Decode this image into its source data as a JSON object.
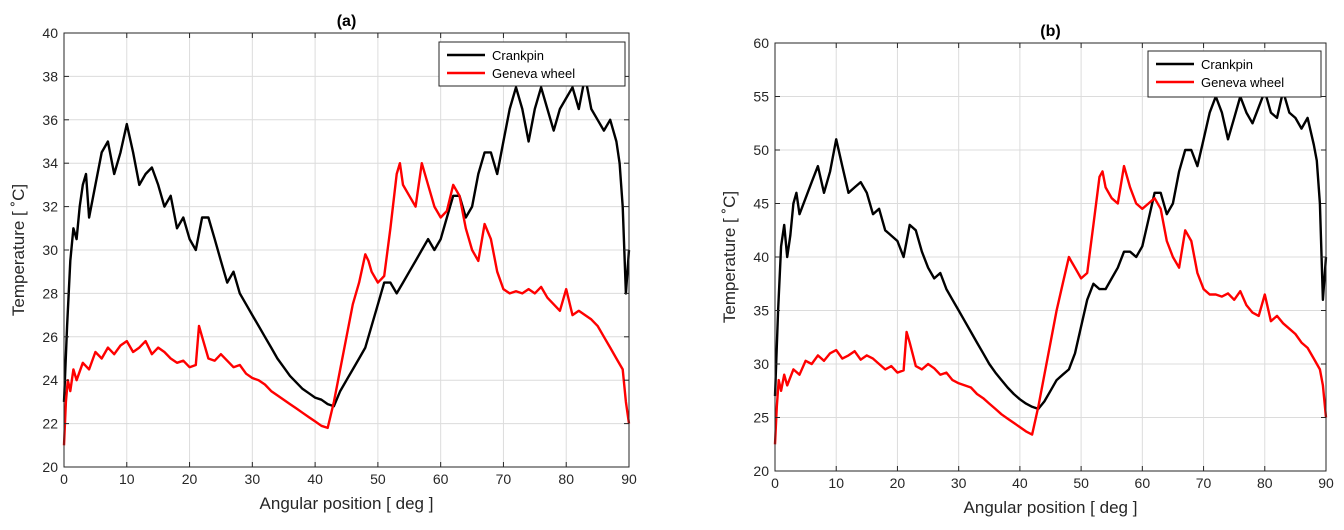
{
  "chart_data": [
    {
      "type": "line",
      "title": "(a)",
      "xlabel": "Angular position [ deg ]",
      "ylabel": "Temperature [ ˚C]",
      "xlim": [
        0,
        90
      ],
      "ylim": [
        20,
        40
      ],
      "xticks": [
        0,
        10,
        20,
        30,
        40,
        50,
        60,
        70,
        80,
        90
      ],
      "yticks": [
        20,
        22,
        24,
        26,
        28,
        30,
        32,
        34,
        36,
        38,
        40
      ],
      "grid": true,
      "legend_position": "top-right",
      "series": [
        {
          "name": "Crankpin",
          "color": "#000000",
          "x": [
            0,
            0.5,
            1,
            1.5,
            2,
            2.5,
            3,
            3.5,
            4,
            5,
            6,
            7,
            8,
            9,
            10,
            11,
            12,
            13,
            14,
            15,
            16,
            17,
            18,
            19,
            20,
            21,
            22,
            23,
            24,
            25,
            26,
            27,
            28,
            29,
            30,
            31,
            32,
            33,
            34,
            35,
            36,
            37,
            38,
            39,
            40,
            41,
            42,
            43,
            44,
            45,
            46,
            47,
            48,
            49,
            50,
            51,
            52,
            53,
            54,
            55,
            56,
            57,
            58,
            59,
            60,
            61,
            62,
            63,
            64,
            65,
            66,
            67,
            68,
            69,
            70,
            71,
            72,
            73,
            74,
            75,
            76,
            77,
            78,
            79,
            80,
            81,
            82,
            83,
            84,
            85,
            86,
            87,
            88,
            88.5,
            89,
            89.5,
            90
          ],
          "y": [
            23.0,
            26.5,
            29.5,
            31.0,
            30.5,
            32.0,
            33.0,
            33.5,
            31.5,
            33.0,
            34.5,
            35.0,
            33.5,
            34.5,
            35.8,
            34.5,
            33.0,
            33.5,
            33.8,
            33.0,
            32.0,
            32.5,
            31.0,
            31.5,
            30.5,
            30.0,
            31.5,
            31.5,
            30.5,
            29.5,
            28.5,
            29.0,
            28.0,
            27.5,
            27.0,
            26.5,
            26.0,
            25.5,
            25.0,
            24.6,
            24.2,
            23.9,
            23.6,
            23.4,
            23.2,
            23.1,
            22.9,
            22.8,
            23.5,
            24.0,
            24.5,
            25.0,
            25.5,
            26.5,
            27.5,
            28.5,
            28.5,
            28.0,
            28.5,
            29.0,
            29.5,
            30.0,
            30.5,
            30.0,
            30.5,
            31.5,
            32.5,
            32.5,
            31.5,
            32.0,
            33.5,
            34.5,
            34.5,
            33.5,
            35.0,
            36.5,
            37.5,
            36.5,
            35.0,
            36.5,
            37.5,
            36.5,
            35.5,
            36.5,
            37.0,
            37.5,
            36.5,
            38.0,
            36.5,
            36.0,
            35.5,
            36.0,
            35.0,
            34.0,
            32.0,
            28.0,
            30.0
          ]
        },
        {
          "name": "Geneva wheel",
          "color": "#ff0000",
          "x": [
            0,
            0.3,
            0.6,
            1,
            1.5,
            2,
            3,
            4,
            5,
            6,
            7,
            8,
            9,
            10,
            11,
            12,
            13,
            14,
            15,
            16,
            17,
            18,
            19,
            20,
            21,
            21.5,
            22,
            23,
            24,
            25,
            26,
            27,
            28,
            29,
            30,
            31,
            32,
            33,
            34,
            35,
            36,
            37,
            38,
            39,
            40,
            41,
            42,
            43,
            44,
            45,
            46,
            47,
            48,
            48.5,
            49,
            50,
            51,
            52,
            53,
            53.5,
            54,
            55,
            56,
            57,
            58,
            59,
            60,
            61,
            62,
            63,
            64,
            65,
            66,
            67,
            68,
            69,
            70,
            71,
            72,
            73,
            74,
            75,
            76,
            77,
            78,
            79,
            80,
            81,
            82,
            83,
            84,
            85,
            86,
            87,
            88,
            89,
            89.5,
            90
          ],
          "y": [
            21.0,
            23.0,
            24.0,
            23.5,
            24.5,
            24.0,
            24.8,
            24.5,
            25.3,
            25.0,
            25.5,
            25.2,
            25.6,
            25.8,
            25.3,
            25.5,
            25.8,
            25.2,
            25.5,
            25.3,
            25.0,
            24.8,
            24.9,
            24.6,
            24.7,
            26.5,
            26.0,
            25.0,
            24.9,
            25.2,
            24.9,
            24.6,
            24.7,
            24.3,
            24.1,
            24.0,
            23.8,
            23.5,
            23.3,
            23.1,
            22.9,
            22.7,
            22.5,
            22.3,
            22.1,
            21.9,
            21.8,
            23.0,
            24.5,
            26.0,
            27.5,
            28.5,
            29.8,
            29.5,
            29.0,
            28.5,
            28.8,
            31.0,
            33.5,
            34.0,
            33.0,
            32.5,
            32.0,
            34.0,
            33.0,
            32.0,
            31.5,
            31.8,
            33.0,
            32.5,
            31.0,
            30.0,
            29.5,
            31.2,
            30.5,
            29.0,
            28.2,
            28.0,
            28.1,
            28.0,
            28.2,
            28.0,
            28.3,
            27.8,
            27.5,
            27.2,
            28.2,
            27.0,
            27.2,
            27.0,
            26.8,
            26.5,
            26.0,
            25.5,
            25.0,
            24.5,
            23.0,
            22.0
          ]
        }
      ]
    },
    {
      "type": "line",
      "title": "(b)",
      "xlabel": "Angular position [ deg ]",
      "ylabel": "Temperature [ ˚C]",
      "xlim": [
        0,
        90
      ],
      "ylim": [
        20,
        60
      ],
      "xticks": [
        0,
        10,
        20,
        30,
        40,
        50,
        60,
        70,
        80,
        90
      ],
      "yticks": [
        20,
        25,
        30,
        35,
        40,
        45,
        50,
        55,
        60
      ],
      "grid": true,
      "legend_position": "top-right",
      "series": [
        {
          "name": "Crankpin",
          "color": "#000000",
          "x": [
            0,
            0.5,
            1,
            1.5,
            2,
            2.5,
            3,
            3.5,
            4,
            5,
            6,
            7,
            8,
            9,
            10,
            11,
            12,
            13,
            14,
            15,
            16,
            17,
            18,
            19,
            20,
            21,
            22,
            23,
            24,
            25,
            26,
            27,
            28,
            29,
            30,
            31,
            32,
            33,
            34,
            35,
            36,
            37,
            38,
            39,
            40,
            41,
            42,
            43,
            44,
            45,
            46,
            47,
            48,
            49,
            50,
            51,
            52,
            53,
            54,
            55,
            56,
            57,
            58,
            59,
            60,
            61,
            62,
            63,
            64,
            65,
            66,
            67,
            68,
            69,
            70,
            71,
            72,
            73,
            74,
            75,
            76,
            77,
            78,
            79,
            80,
            81,
            82,
            83,
            84,
            85,
            86,
            87,
            88,
            88.5,
            89,
            89.5,
            90
          ],
          "y": [
            27.0,
            35.0,
            41.0,
            43.0,
            40.0,
            42.0,
            45.0,
            46.0,
            44.0,
            45.5,
            47.0,
            48.5,
            46.0,
            48.0,
            51.0,
            48.5,
            46.0,
            46.5,
            47.0,
            46.0,
            44.0,
            44.5,
            42.5,
            42.0,
            41.5,
            40.0,
            43.0,
            42.5,
            40.5,
            39.0,
            38.0,
            38.5,
            37.0,
            36.0,
            35.0,
            34.0,
            33.0,
            32.0,
            31.0,
            30.0,
            29.2,
            28.5,
            27.8,
            27.2,
            26.7,
            26.3,
            26.0,
            25.8,
            26.5,
            27.5,
            28.5,
            29.0,
            29.5,
            31.0,
            33.5,
            36.0,
            37.5,
            37.0,
            37.0,
            38.0,
            39.0,
            40.5,
            40.5,
            40.0,
            41.0,
            43.5,
            46.0,
            46.0,
            44.0,
            45.0,
            48.0,
            50.0,
            50.0,
            48.5,
            51.0,
            53.5,
            55.0,
            53.5,
            51.0,
            53.0,
            55.0,
            53.5,
            52.5,
            54.0,
            55.5,
            53.5,
            53.0,
            55.5,
            53.5,
            53.0,
            52.0,
            53.0,
            50.5,
            49.0,
            45.0,
            36.0,
            40.0
          ]
        },
        {
          "name": "Geneva wheel",
          "color": "#ff0000",
          "x": [
            0,
            0.3,
            0.6,
            1,
            1.5,
            2,
            3,
            4,
            5,
            6,
            7,
            8,
            9,
            10,
            11,
            12,
            13,
            14,
            15,
            16,
            17,
            18,
            19,
            20,
            21,
            21.5,
            22,
            23,
            24,
            25,
            26,
            27,
            28,
            29,
            30,
            31,
            32,
            33,
            34,
            35,
            36,
            37,
            38,
            39,
            40,
            41,
            42,
            43,
            44,
            45,
            46,
            47,
            48,
            48.5,
            49,
            50,
            51,
            52,
            53,
            53.5,
            54,
            55,
            56,
            57,
            58,
            59,
            60,
            61,
            62,
            63,
            64,
            65,
            66,
            67,
            68,
            69,
            70,
            71,
            72,
            73,
            74,
            75,
            76,
            77,
            78,
            79,
            80,
            81,
            82,
            83,
            84,
            85,
            86,
            87,
            88,
            89,
            89.5,
            90
          ],
          "y": [
            22.5,
            26.0,
            28.5,
            27.5,
            29.0,
            28.0,
            29.5,
            29.0,
            30.3,
            30.0,
            30.8,
            30.3,
            31.0,
            31.3,
            30.5,
            30.8,
            31.2,
            30.4,
            30.8,
            30.5,
            30.0,
            29.5,
            29.8,
            29.2,
            29.4,
            33.0,
            32.0,
            29.8,
            29.5,
            30.0,
            29.6,
            29.0,
            29.2,
            28.5,
            28.2,
            28.0,
            27.8,
            27.2,
            26.8,
            26.3,
            25.8,
            25.3,
            24.9,
            24.5,
            24.1,
            23.7,
            23.4,
            26.0,
            29.0,
            32.0,
            35.0,
            37.5,
            40.0,
            39.5,
            39.0,
            38.0,
            38.5,
            43.0,
            47.5,
            48.0,
            46.5,
            45.5,
            45.0,
            48.5,
            46.5,
            45.0,
            44.5,
            45.0,
            45.5,
            44.5,
            41.5,
            40.0,
            39.0,
            42.5,
            41.5,
            38.5,
            37.0,
            36.5,
            36.5,
            36.3,
            36.6,
            36.0,
            36.8,
            35.5,
            34.8,
            34.5,
            36.5,
            34.0,
            34.5,
            33.8,
            33.3,
            32.8,
            32.0,
            31.5,
            30.5,
            29.5,
            28.0,
            25.0
          ]
        }
      ]
    }
  ]
}
